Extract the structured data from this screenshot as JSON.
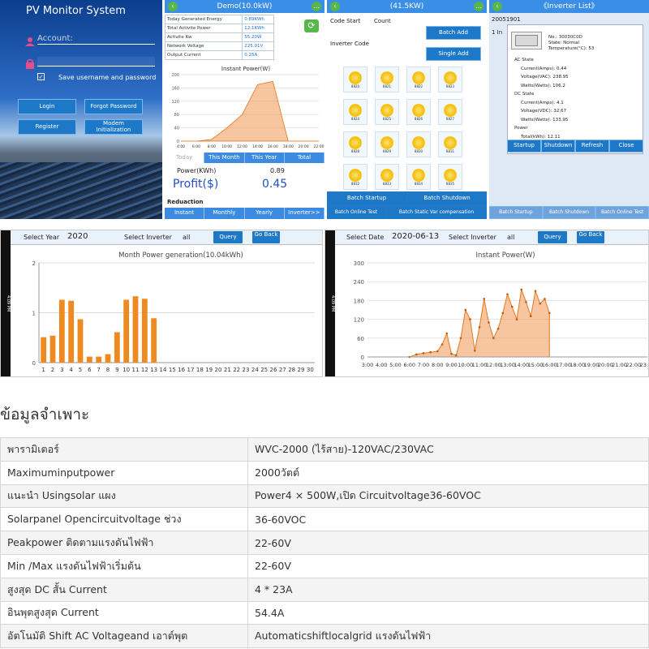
{
  "login": {
    "title": "PV Monitor System",
    "account_placeholder": "Account:",
    "password_placeholder": "Password",
    "remember_label": "Save username and password",
    "login_btn": "Login",
    "forgot_btn": "Forgot Password",
    "register_btn": "Register",
    "modem_btn": "Modem Initialization"
  },
  "demo": {
    "title": "Demo(10.0kW)",
    "stats": [
      {
        "label": "Today Generated Energy",
        "value": "0.89KWh"
      },
      {
        "label": "Total Activite Power",
        "value": "12.1KWh"
      },
      {
        "label": "Activite Kw",
        "value": "55.20W"
      },
      {
        "label": "Network Voltage",
        "value": "225.01V"
      },
      {
        "label": "Output Current",
        "value": "0.25A"
      }
    ],
    "chart_title": "Instant Power(W)",
    "chart_y_ticks": [
      "200",
      "160",
      "120",
      "80",
      "40",
      "0"
    ],
    "chart_x_ticks": [
      "4:00",
      "6:00",
      "8:00",
      "10:00",
      "12:00",
      "14:00",
      "16:00",
      "18:00",
      "20:00",
      "22:00"
    ],
    "tabs": [
      "Today",
      "This Month",
      "This Year",
      "Total"
    ],
    "power_label": "Power(KWh)",
    "power_value": "0.89",
    "profit_label": "Profit($)",
    "profit_value": "0.45",
    "reduction_label": "Reduaction",
    "bottom_tabs": [
      "Instant",
      "Monthly",
      "Yearly",
      "Inverter>>"
    ]
  },
  "batch": {
    "title": "(41.5KW)",
    "code_start": "Code Start",
    "count": "Count",
    "batch_add": "Batch Add",
    "inverter_code": "Inverter Code",
    "single_add": "Single Add",
    "inverters": [
      "8820",
      "8821",
      "8822",
      "8823",
      "8824",
      "8825",
      "8826",
      "8827",
      "8828",
      "8829",
      "8830",
      "8831",
      "8832",
      "8833",
      "8834",
      "8835"
    ],
    "batch_startup": "Batch Startup",
    "batch_shutdown": "Batch Shutdown",
    "online_test": "Batch Online Test",
    "static_var": "Batch Static Var compensation"
  },
  "inverter_list": {
    "title": "《Inverter List》",
    "row_id": "20051901",
    "row_prefix": "1 In",
    "no": "No.: 30030C0D",
    "state": "State: Normal",
    "temperature": "Temperature(°C): 53",
    "ac_state": "AC State",
    "ac_current": "Current(Amps): 0.44",
    "ac_voltage": "Voltage(VAC): 238.95",
    "ac_watts": "Watts(Watts): 106.2",
    "dc_state": "DC State",
    "dc_current": "Current(Amps): 4.1",
    "dc_voltage": "Voltage(VDC): 32.67",
    "dc_watts": "Watts(Watts): 133.95",
    "power_label": "Power",
    "total_kwh": "Total(kWh): 12.11",
    "buttons": [
      "Startup",
      "Shutdown",
      "Refresh",
      "Close"
    ],
    "bottom_tabs": [
      "Batch Startup",
      "Batch Shutdown",
      "Batch Online Test"
    ]
  },
  "month_panel": {
    "side_time": "4:09 PM",
    "side_status": "48KB/s",
    "select_year_label": "Select Year",
    "year": "2020",
    "select_inverter_label": "Select Inverter",
    "inverter": "all",
    "query": "Query",
    "go_back": "Go Back",
    "title": "Month Power generation(10.04kWh)",
    "y_ticks": [
      "2",
      "1",
      "0"
    ]
  },
  "instant_panel": {
    "side_time": "4:09 PM",
    "side_status": "48KB/s",
    "select_date_label": "Select Date",
    "date": "2020-06-13",
    "select_inverter_label": "Select Inverter",
    "inverter": "all",
    "query": "Query",
    "go_back": "Go Back",
    "title": "Instant Power(W)",
    "y_ticks": [
      "300",
      "240",
      "180",
      "120",
      "60",
      "0"
    ],
    "x_ticks": [
      "3:00",
      "4:00",
      "5:00",
      "6:00",
      "7:00",
      "8:00",
      "9:00",
      "10:00",
      "11:00",
      "12:00",
      "13:00",
      "14:00",
      "15:00",
      "16:00",
      "17:00",
      "18:00",
      "19:00",
      "20:00",
      "21:00",
      "22:00",
      "23:00"
    ]
  },
  "specs": {
    "heading": "ข้อมูลจำเพาะ",
    "rows": [
      {
        "k": "พารามิเตอร์",
        "v": "WVC-2000 (ไร้สาย)-120VAC/230VAC"
      },
      {
        "k": "Maximuminputpower",
        "v": "2000วัตต์"
      },
      {
        "k": "แนะนำ Usingsolar แผง",
        "v": "Power4 × 500W,เปิด Circuitvoltage36-60VOC"
      },
      {
        "k": "Solarpanel Opencircuitvoltage ช่วง",
        "v": "36-60VOC"
      },
      {
        "k": "Peakpower ติดตามแรงดันไฟฟ้า",
        "v": "22-60V"
      },
      {
        "k": "Min /Max แรงดันไฟฟ้าเริ่มต้น",
        "v": "22-60V"
      },
      {
        "k": "สูงสุด DC สั้น Current",
        "v": "4 * 23A"
      },
      {
        "k": "อินพุตสูงสุด Current",
        "v": "54.4A"
      },
      {
        "k": "อัตโนมัติ Shift AC Voltageand เอาต์พุต",
        "v": "Automaticshiftlocalgrid แรงดันไฟฟ้า"
      }
    ]
  },
  "chart_data": [
    {
      "type": "bar",
      "title": "Month Power generation(10.04kWh)",
      "categories": [
        "1",
        "2",
        "3",
        "4",
        "5",
        "6",
        "7",
        "8",
        "9",
        "10",
        "11",
        "12",
        "13",
        "14",
        "15",
        "16",
        "17",
        "18",
        "19",
        "20",
        "21",
        "22",
        "23",
        "24",
        "25",
        "26",
        "27",
        "28",
        "29",
        "30"
      ],
      "values": [
        0.51,
        0.54,
        1.26,
        1.24,
        0.87,
        0.12,
        0.12,
        0.17,
        0.61,
        1.26,
        1.33,
        1.28,
        0.89,
        0,
        0,
        0,
        0,
        0,
        0,
        0,
        0,
        0,
        0,
        0,
        0,
        0,
        0,
        0,
        0,
        0
      ],
      "ylim": [
        0,
        2
      ]
    },
    {
      "type": "area",
      "title": "Instant Power(W)",
      "x": [
        "6:00",
        "6:30",
        "7:00",
        "7:30",
        "8:00",
        "8:20",
        "8:40",
        "9:00",
        "9:20",
        "9:40",
        "10:00",
        "10:20",
        "10:40",
        "11:00",
        "11:20",
        "11:40",
        "12:00",
        "12:20",
        "12:40",
        "13:00",
        "13:20",
        "13:40",
        "14:00",
        "14:20",
        "14:40",
        "15:00",
        "15:20",
        "15:40",
        "16:00"
      ],
      "values": [
        0,
        8,
        12,
        15,
        18,
        40,
        75,
        10,
        5,
        60,
        150,
        120,
        20,
        95,
        185,
        110,
        60,
        90,
        140,
        200,
        160,
        120,
        215,
        175,
        130,
        210,
        170,
        185,
        140
      ],
      "ylim": [
        0,
        300
      ]
    },
    {
      "type": "area",
      "title": "Instant Power(W)",
      "x": [
        "4:00",
        "6:00",
        "8:00",
        "10:00",
        "12:00",
        "14:00",
        "16:00",
        "18:00",
        "20:00",
        "22:00"
      ],
      "values": [
        0,
        0,
        5,
        40,
        80,
        170,
        180,
        0,
        0,
        0
      ],
      "ylim": [
        0,
        200
      ]
    }
  ]
}
